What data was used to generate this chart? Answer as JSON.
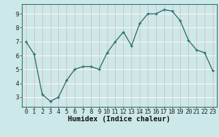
{
  "x": [
    0,
    1,
    2,
    3,
    4,
    5,
    6,
    7,
    8,
    9,
    10,
    11,
    12,
    13,
    14,
    15,
    16,
    17,
    18,
    19,
    20,
    21,
    22,
    23
  ],
  "y": [
    7.0,
    6.1,
    3.2,
    2.7,
    3.0,
    4.2,
    5.0,
    5.2,
    5.2,
    5.0,
    6.2,
    7.0,
    7.7,
    6.7,
    8.3,
    9.0,
    9.0,
    9.3,
    9.2,
    8.5,
    7.1,
    6.4,
    6.2,
    4.9
  ],
  "bg_color": "#cce8e8",
  "line_color": "#2e6e6e",
  "marker_color": "#2e6e6e",
  "grid_color": "#ffffff",
  "grid_red_color": "#e8b0b0",
  "xlabel": "Humidex (Indice chaleur)",
  "ylim": [
    2.3,
    9.7
  ],
  "xlim": [
    -0.5,
    23.5
  ],
  "yticks": [
    3,
    4,
    5,
    6,
    7,
    8,
    9
  ],
  "xtick_labels": [
    "0",
    "1",
    "2",
    "3",
    "4",
    "5",
    "6",
    "7",
    "8",
    "9",
    "10",
    "11",
    "12",
    "13",
    "14",
    "15",
    "16",
    "17",
    "18",
    "19",
    "20",
    "21",
    "22",
    "23"
  ],
  "xlabel_fontsize": 7.5,
  "tick_fontsize": 6.5
}
